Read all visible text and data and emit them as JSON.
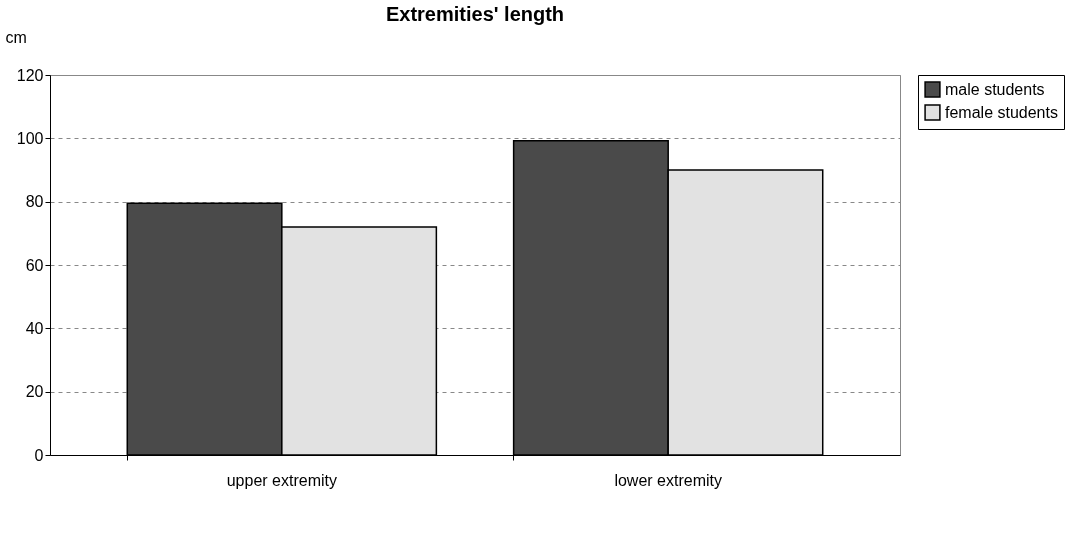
{
  "chart_data": {
    "type": "bar",
    "title": "Extremities' length",
    "ylabel": "cm",
    "categories": [
      "upper extremity",
      "lower extremity"
    ],
    "series": [
      {
        "name": "male students",
        "color": "#4a4a4a",
        "values": [
          79.5,
          99.2
        ]
      },
      {
        "name": "female students",
        "color": "#e2e2e2",
        "values": [
          72,
          90
        ]
      }
    ],
    "ylim": [
      0,
      120
    ],
    "yticks": [
      0,
      20,
      40,
      60,
      80,
      100,
      120
    ],
    "grid": "y",
    "legend": "top right"
  }
}
